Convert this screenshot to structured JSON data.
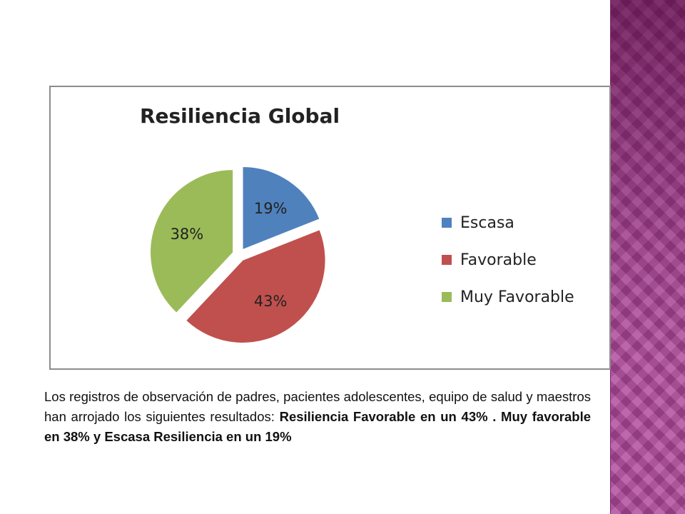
{
  "chart_data": {
    "type": "pie",
    "title": "Resiliencia Global",
    "categories": [
      "Escasa",
      "Favorable",
      "Muy Favorable"
    ],
    "values": [
      19,
      43,
      38
    ],
    "labels": [
      "19%",
      "43%",
      "38%"
    ],
    "colors": [
      "#4f81bd",
      "#c0504d",
      "#9bbb59"
    ],
    "exploded": true,
    "legend_position": "right"
  },
  "caption": {
    "plain": "Los registros de observación de padres, pacientes adolescentes, equipo de salud y maestros han arrojado los siguientes resultados: ",
    "bold": "Resiliencia Favorable en un 43% . Muy favorable en 38% y Escasa  Resiliencia en un 19%"
  }
}
